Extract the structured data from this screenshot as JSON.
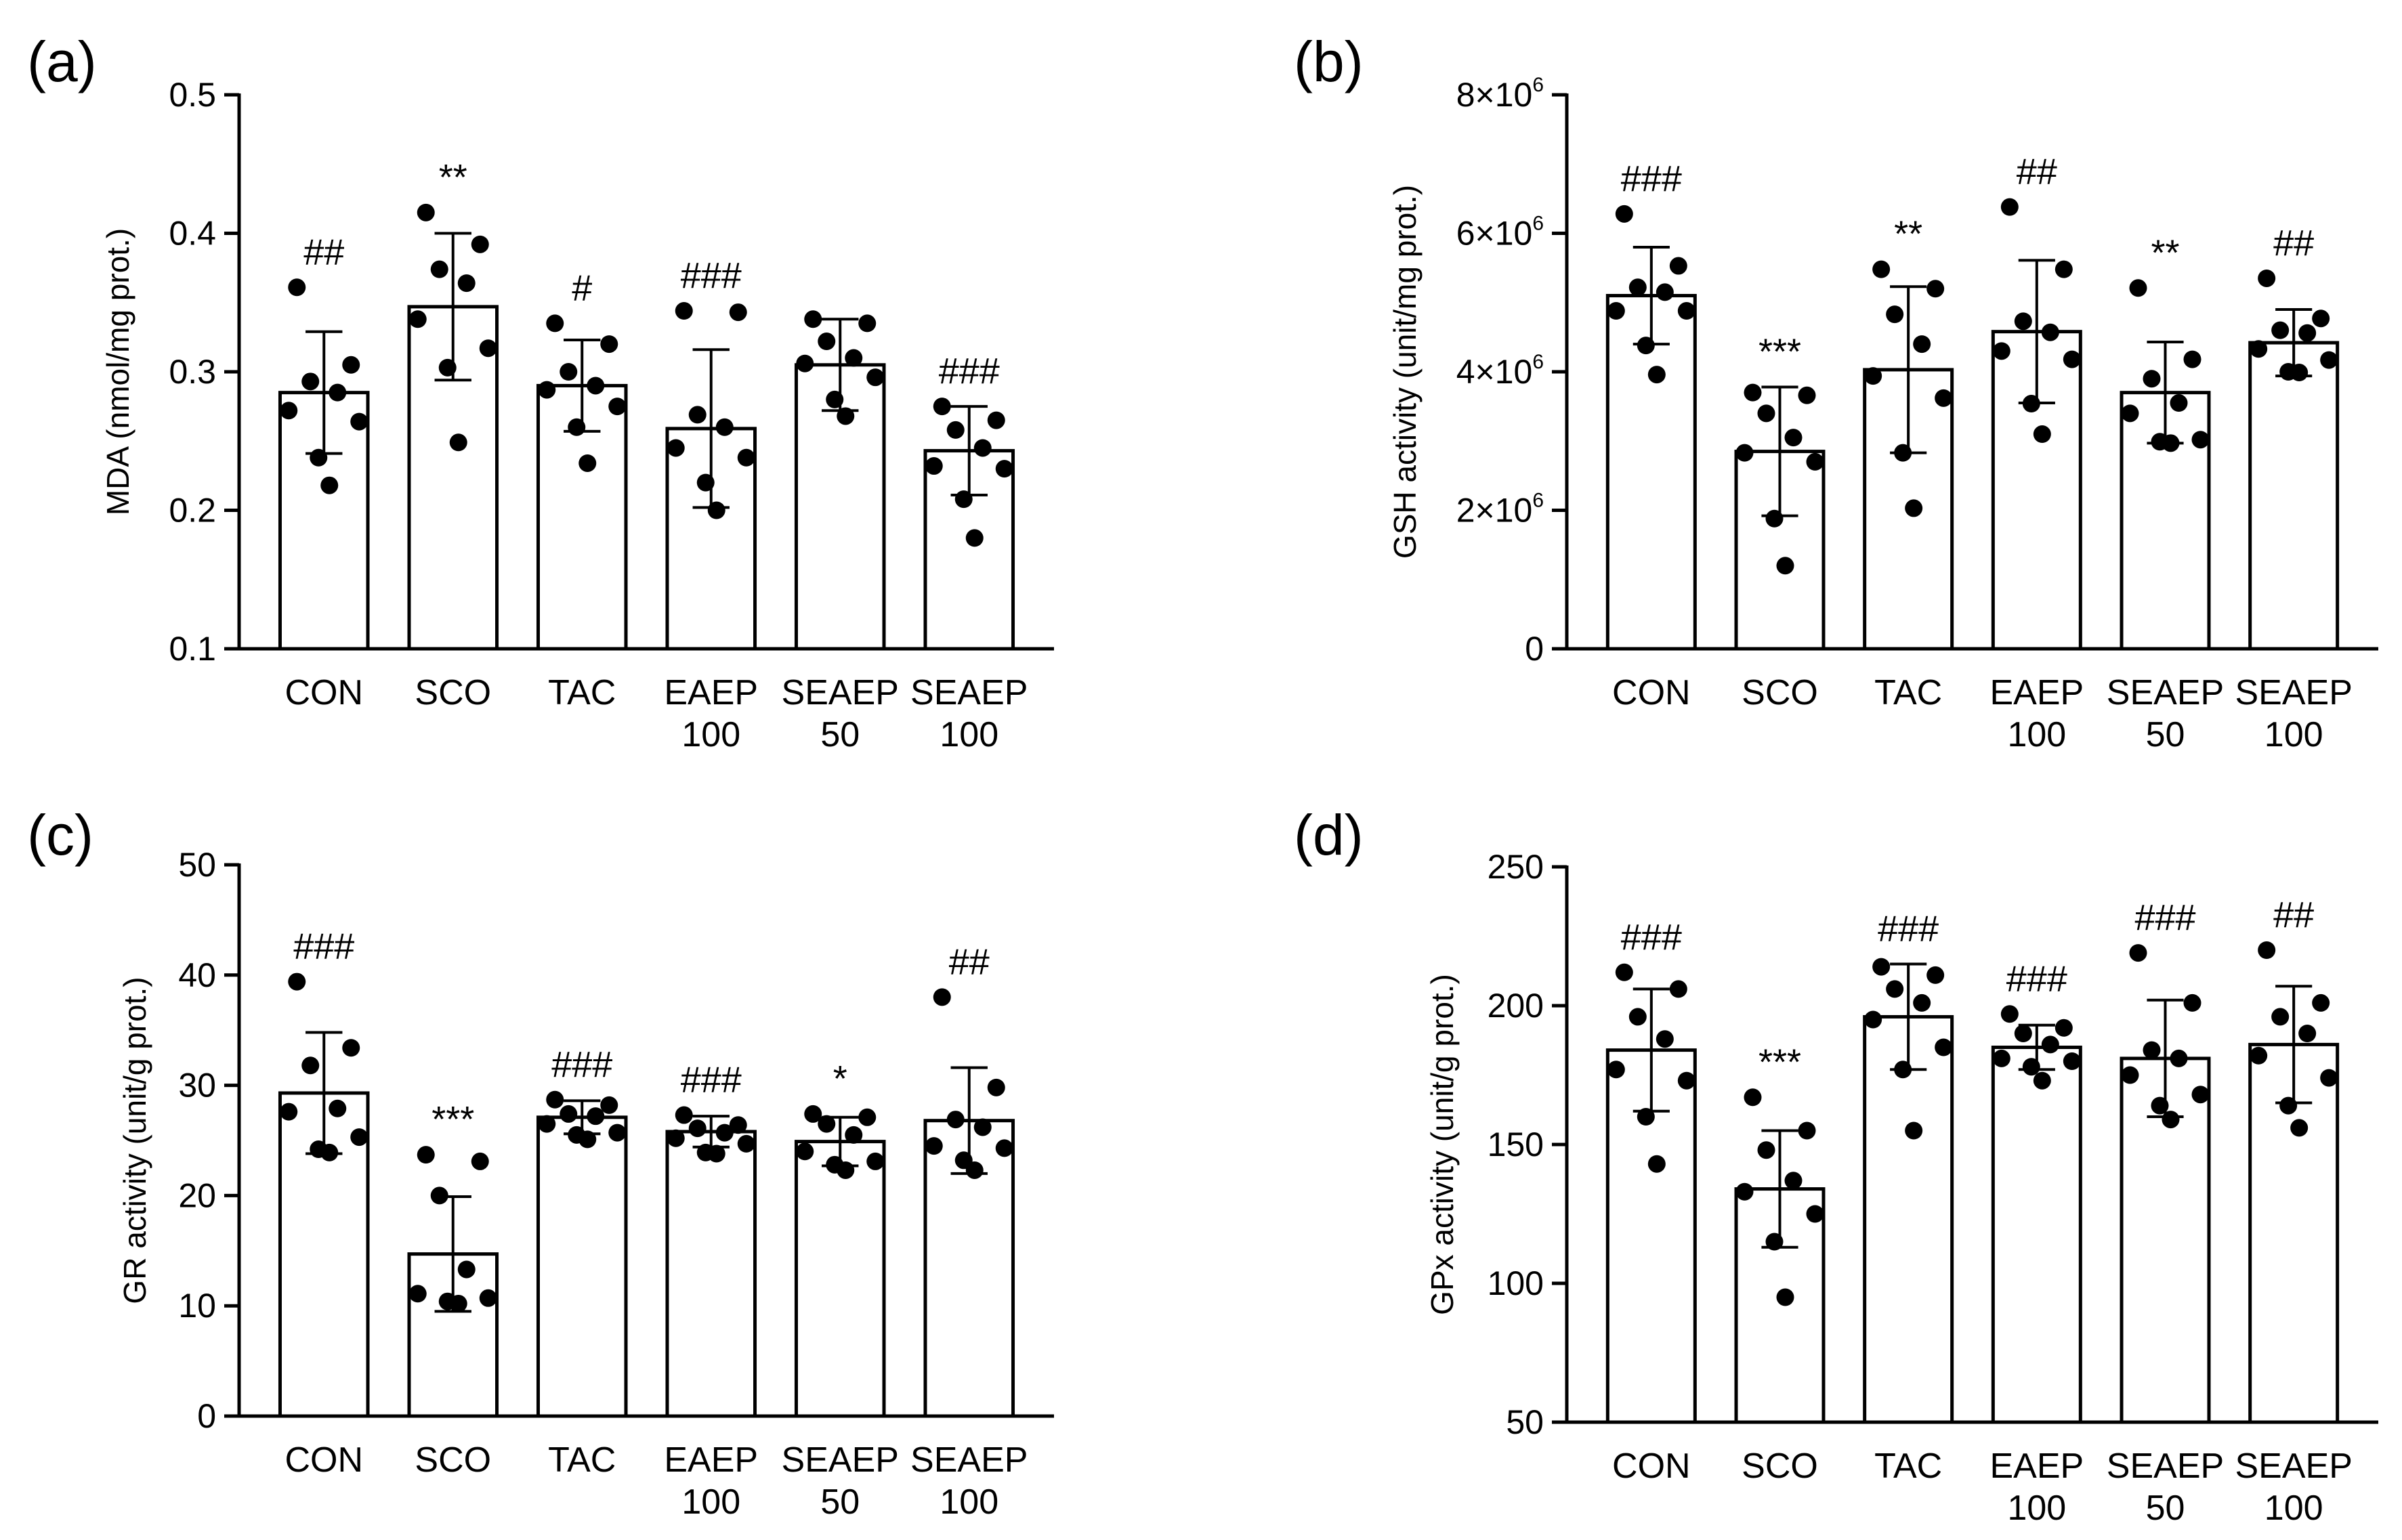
{
  "chart_data": [
    {
      "id": "a",
      "type": "bar",
      "panel_label": "(a)",
      "ylabel": "MDA (nmol/mg prot.)",
      "ylim": [
        0.1,
        0.5
      ],
      "yticks": [
        "0.1",
        "0.2",
        "0.3",
        "0.4",
        "0.5"
      ],
      "categories": [
        [
          "CON"
        ],
        [
          "SCO"
        ],
        [
          "TAC"
        ],
        [
          "EAEP",
          "100"
        ],
        [
          "SEAEP",
          "50"
        ],
        [
          "SEAEP",
          "100"
        ]
      ],
      "values": [
        0.285,
        0.347,
        0.29,
        0.259,
        0.305,
        0.243
      ],
      "error": [
        0.044,
        0.053,
        0.033,
        0.057,
        0.033,
        0.032
      ],
      "points": [
        [
          0.361,
          0.305,
          0.293,
          0.285,
          0.272,
          0.264,
          0.238,
          0.218
        ],
        [
          0.415,
          0.392,
          0.374,
          0.364,
          0.338,
          0.317,
          0.303,
          0.249
        ],
        [
          0.335,
          0.32,
          0.3,
          0.29,
          0.287,
          0.275,
          0.26,
          0.234
        ],
        [
          0.344,
          0.343,
          0.269,
          0.26,
          0.245,
          0.238,
          0.22,
          0.2
        ],
        [
          0.338,
          0.335,
          0.322,
          0.31,
          0.306,
          0.296,
          0.28,
          0.268
        ],
        [
          0.275,
          0.265,
          0.258,
          0.245,
          0.232,
          0.23,
          0.208,
          0.18
        ]
      ],
      "significance": [
        "##",
        "**",
        "#",
        "###",
        "",
        "###"
      ]
    },
    {
      "id": "b",
      "type": "bar",
      "panel_label": "(b)",
      "ylabel": "GSH activity (unit/mg prot.)",
      "ylim": [
        0,
        8000000
      ],
      "yticks": [
        {
          "base": "0",
          "exp": ""
        },
        {
          "base": "2×10",
          "exp": "6"
        },
        {
          "base": "4×10",
          "exp": "6"
        },
        {
          "base": "6×10",
          "exp": "6"
        },
        {
          "base": "8×10",
          "exp": "6"
        }
      ],
      "categories": [
        [
          "CON"
        ],
        [
          "SCO"
        ],
        [
          "TAC"
        ],
        [
          "EAEP",
          "100"
        ],
        [
          "SEAEP",
          "50"
        ],
        [
          "SEAEP",
          "100"
        ]
      ],
      "values": [
        5100000,
        2850000,
        4030000,
        4580000,
        3700000,
        4420000
      ],
      "error": [
        700000,
        930000,
        1200000,
        1030000,
        730000,
        480000
      ],
      "points": [
        [
          6280000,
          5530000,
          5220000,
          5150000,
          4880000,
          4880000,
          4380000,
          3960000
        ],
        [
          3700000,
          3660000,
          3400000,
          3050000,
          2830000,
          2700000,
          1880000,
          1200000
        ],
        [
          5480000,
          5200000,
          4830000,
          4400000,
          3940000,
          3620000,
          2830000,
          2030000
        ],
        [
          6380000,
          5480000,
          4730000,
          4570000,
          4300000,
          4180000,
          3540000,
          3100000
        ],
        [
          5210000,
          4180000,
          3900000,
          3550000,
          3400000,
          3020000,
          2990000,
          2970000
        ],
        [
          5350000,
          4770000,
          4600000,
          4560000,
          4330000,
          4170000,
          4000000,
          3990000
        ]
      ],
      "significance": [
        "###",
        "***",
        "**",
        "##",
        "**",
        "##"
      ]
    },
    {
      "id": "c",
      "type": "bar",
      "panel_label": "(c)",
      "ylabel": "GR activity (unit/g prot.)",
      "ylim": [
        0,
        50
      ],
      "yticks": [
        "0",
        "10",
        "20",
        "30",
        "40",
        "50"
      ],
      "categories": [
        [
          "CON"
        ],
        [
          "SCO"
        ],
        [
          "TAC"
        ],
        [
          "EAEP",
          "100"
        ],
        [
          "SEAEP",
          "50"
        ],
        [
          "SEAEP",
          "100"
        ]
      ],
      "values": [
        29.3,
        14.7,
        27.1,
        25.8,
        24.9,
        26.8
      ],
      "error": [
        5.5,
        5.2,
        1.5,
        1.4,
        2.2,
        4.8
      ],
      "points": [
        [
          39.4,
          33.4,
          31.8,
          27.9,
          27.6,
          25.3,
          24.2,
          23.9
        ],
        [
          23.7,
          23.1,
          20.0,
          13.3,
          11.1,
          10.7,
          10.4,
          10.2
        ],
        [
          28.7,
          28.2,
          27.4,
          27.2,
          26.5,
          25.7,
          25.5,
          25.1
        ],
        [
          27.3,
          26.4,
          26.1,
          25.7,
          25.2,
          24.7,
          23.9,
          23.8
        ],
        [
          27.4,
          27.1,
          26.5,
          25.5,
          24.0,
          23.1,
          22.8,
          22.3
        ],
        [
          38.0,
          29.8,
          26.9,
          26.2,
          24.5,
          24.3,
          23.2,
          22.3
        ]
      ],
      "significance": [
        "###",
        "***",
        "###",
        "###",
        "*",
        "##"
      ]
    },
    {
      "id": "d",
      "type": "bar",
      "panel_label": "(d)",
      "ylabel": "GPx activity (unit/g prot.)",
      "ylim": [
        50,
        250
      ],
      "yticks": [
        "50",
        "100",
        "150",
        "200",
        "250"
      ],
      "categories": [
        [
          "CON"
        ],
        [
          "SCO"
        ],
        [
          "TAC"
        ],
        [
          "EAEP",
          "100"
        ],
        [
          "SEAEP",
          "50"
        ],
        [
          "SEAEP",
          "100"
        ]
      ],
      "values": [
        184,
        134,
        196,
        185,
        181,
        186
      ],
      "error": [
        22,
        21,
        19,
        8,
        21,
        21
      ],
      "points": [
        [
          212,
          206,
          196,
          188,
          177,
          173,
          160,
          143
        ],
        [
          167,
          155,
          148,
          137,
          133,
          125,
          115,
          95
        ],
        [
          214,
          211,
          206,
          201,
          195,
          185,
          177,
          155
        ],
        [
          197,
          192,
          190,
          186,
          181,
          180,
          178,
          173
        ],
        [
          219,
          201,
          184,
          181,
          175,
          168,
          164,
          159
        ],
        [
          220,
          201,
          196,
          190,
          182,
          174,
          164,
          156
        ]
      ],
      "significance": [
        "###",
        "***",
        "###",
        "###",
        "###",
        "##"
      ]
    }
  ]
}
